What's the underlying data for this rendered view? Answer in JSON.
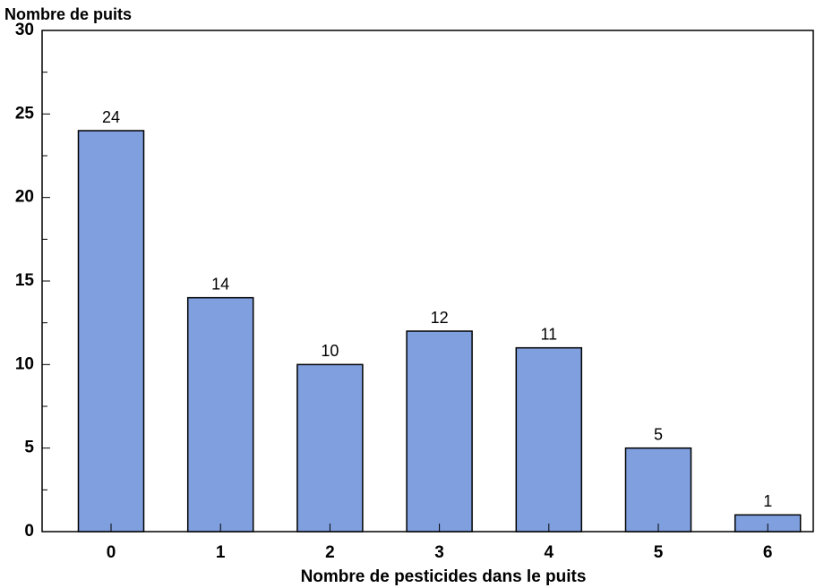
{
  "chart_data": {
    "type": "bar",
    "y_label": "Nombre de puits",
    "x_label": "Nombre de pesticides dans le puits",
    "categories": [
      "0",
      "1",
      "2",
      "3",
      "4",
      "5",
      "6"
    ],
    "values": [
      24,
      14,
      10,
      12,
      11,
      5,
      1
    ],
    "color": "#7f9fdf",
    "ylim": [
      0,
      30
    ],
    "yticks": [
      0,
      5,
      10,
      15,
      20,
      25,
      30
    ],
    "yminorticks": [
      2.5,
      7.5,
      12.5,
      17.5,
      22.5,
      27.5
    ],
    "grid": false
  }
}
